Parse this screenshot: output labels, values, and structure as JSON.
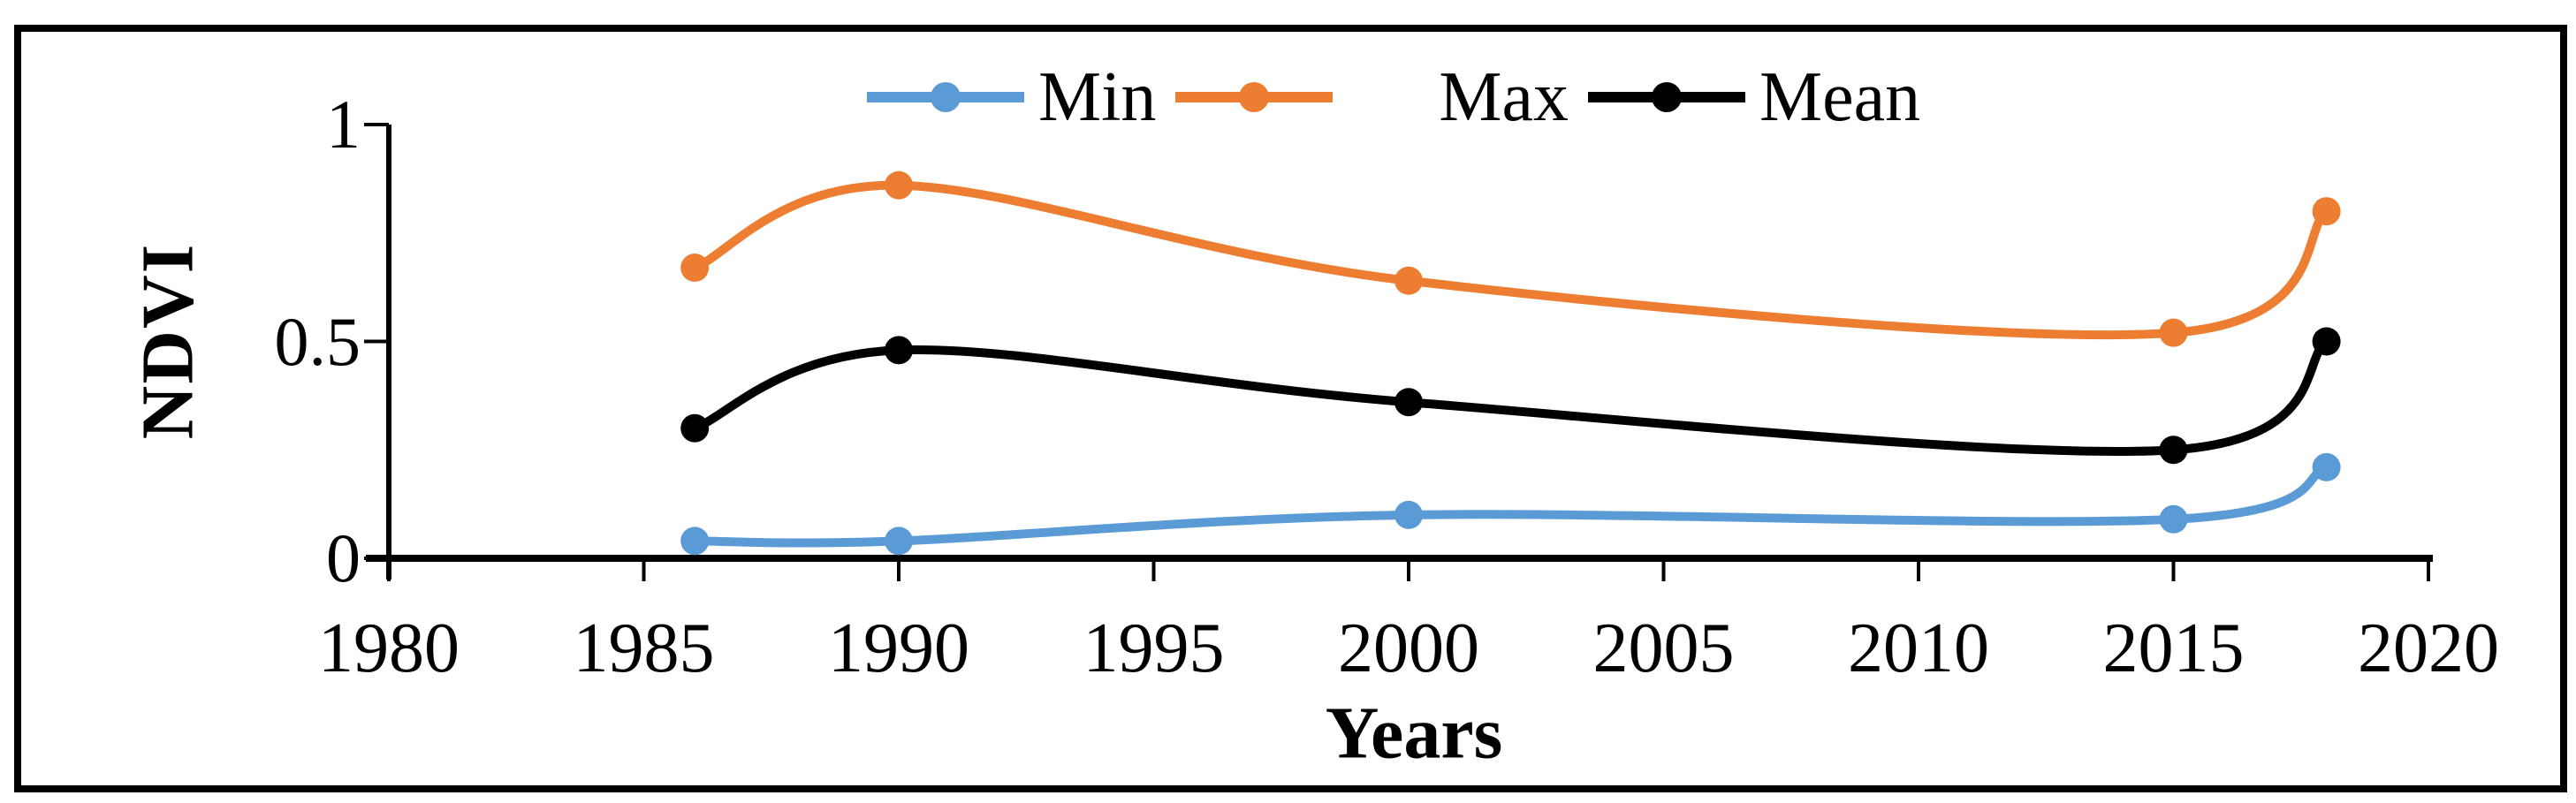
{
  "figure": {
    "background": "#ffffff",
    "border_color": "#000000",
    "text_color": "#000000"
  },
  "chart_data": {
    "type": "line",
    "title": "",
    "xlabel": "Years",
    "ylabel": "NDVI",
    "x": [
      1986,
      1990,
      2000,
      2015,
      2018
    ],
    "series": [
      {
        "name": "Min",
        "color": "#5B9BD5",
        "values": [
          0.04,
          0.04,
          0.1,
          0.09,
          0.21
        ]
      },
      {
        "name": "Max",
        "color": "#ED7D31",
        "values": [
          0.67,
          0.86,
          0.64,
          0.52,
          0.8
        ]
      },
      {
        "name": "Mean",
        "color": "#000000",
        "values": [
          0.3,
          0.48,
          0.36,
          0.25,
          0.5
        ]
      }
    ],
    "x_ticks": [
      1980,
      1985,
      1990,
      1995,
      2000,
      2005,
      2010,
      2015,
      2020
    ],
    "x_tick_labels": [
      "1980",
      "1985",
      "1990",
      "1995",
      "2000",
      "2005",
      "2010",
      "2015",
      "2020"
    ],
    "y_ticks": [
      0,
      0.5,
      1
    ],
    "y_tick_labels": [
      "0",
      "0.5",
      "1"
    ],
    "xlim": [
      1980,
      2020
    ],
    "ylim": [
      0,
      1
    ],
    "grid": false,
    "smooth": true,
    "marker": "circle",
    "legend_position": "top-center",
    "legend_order": [
      "Min",
      "Max",
      "Mean"
    ]
  }
}
